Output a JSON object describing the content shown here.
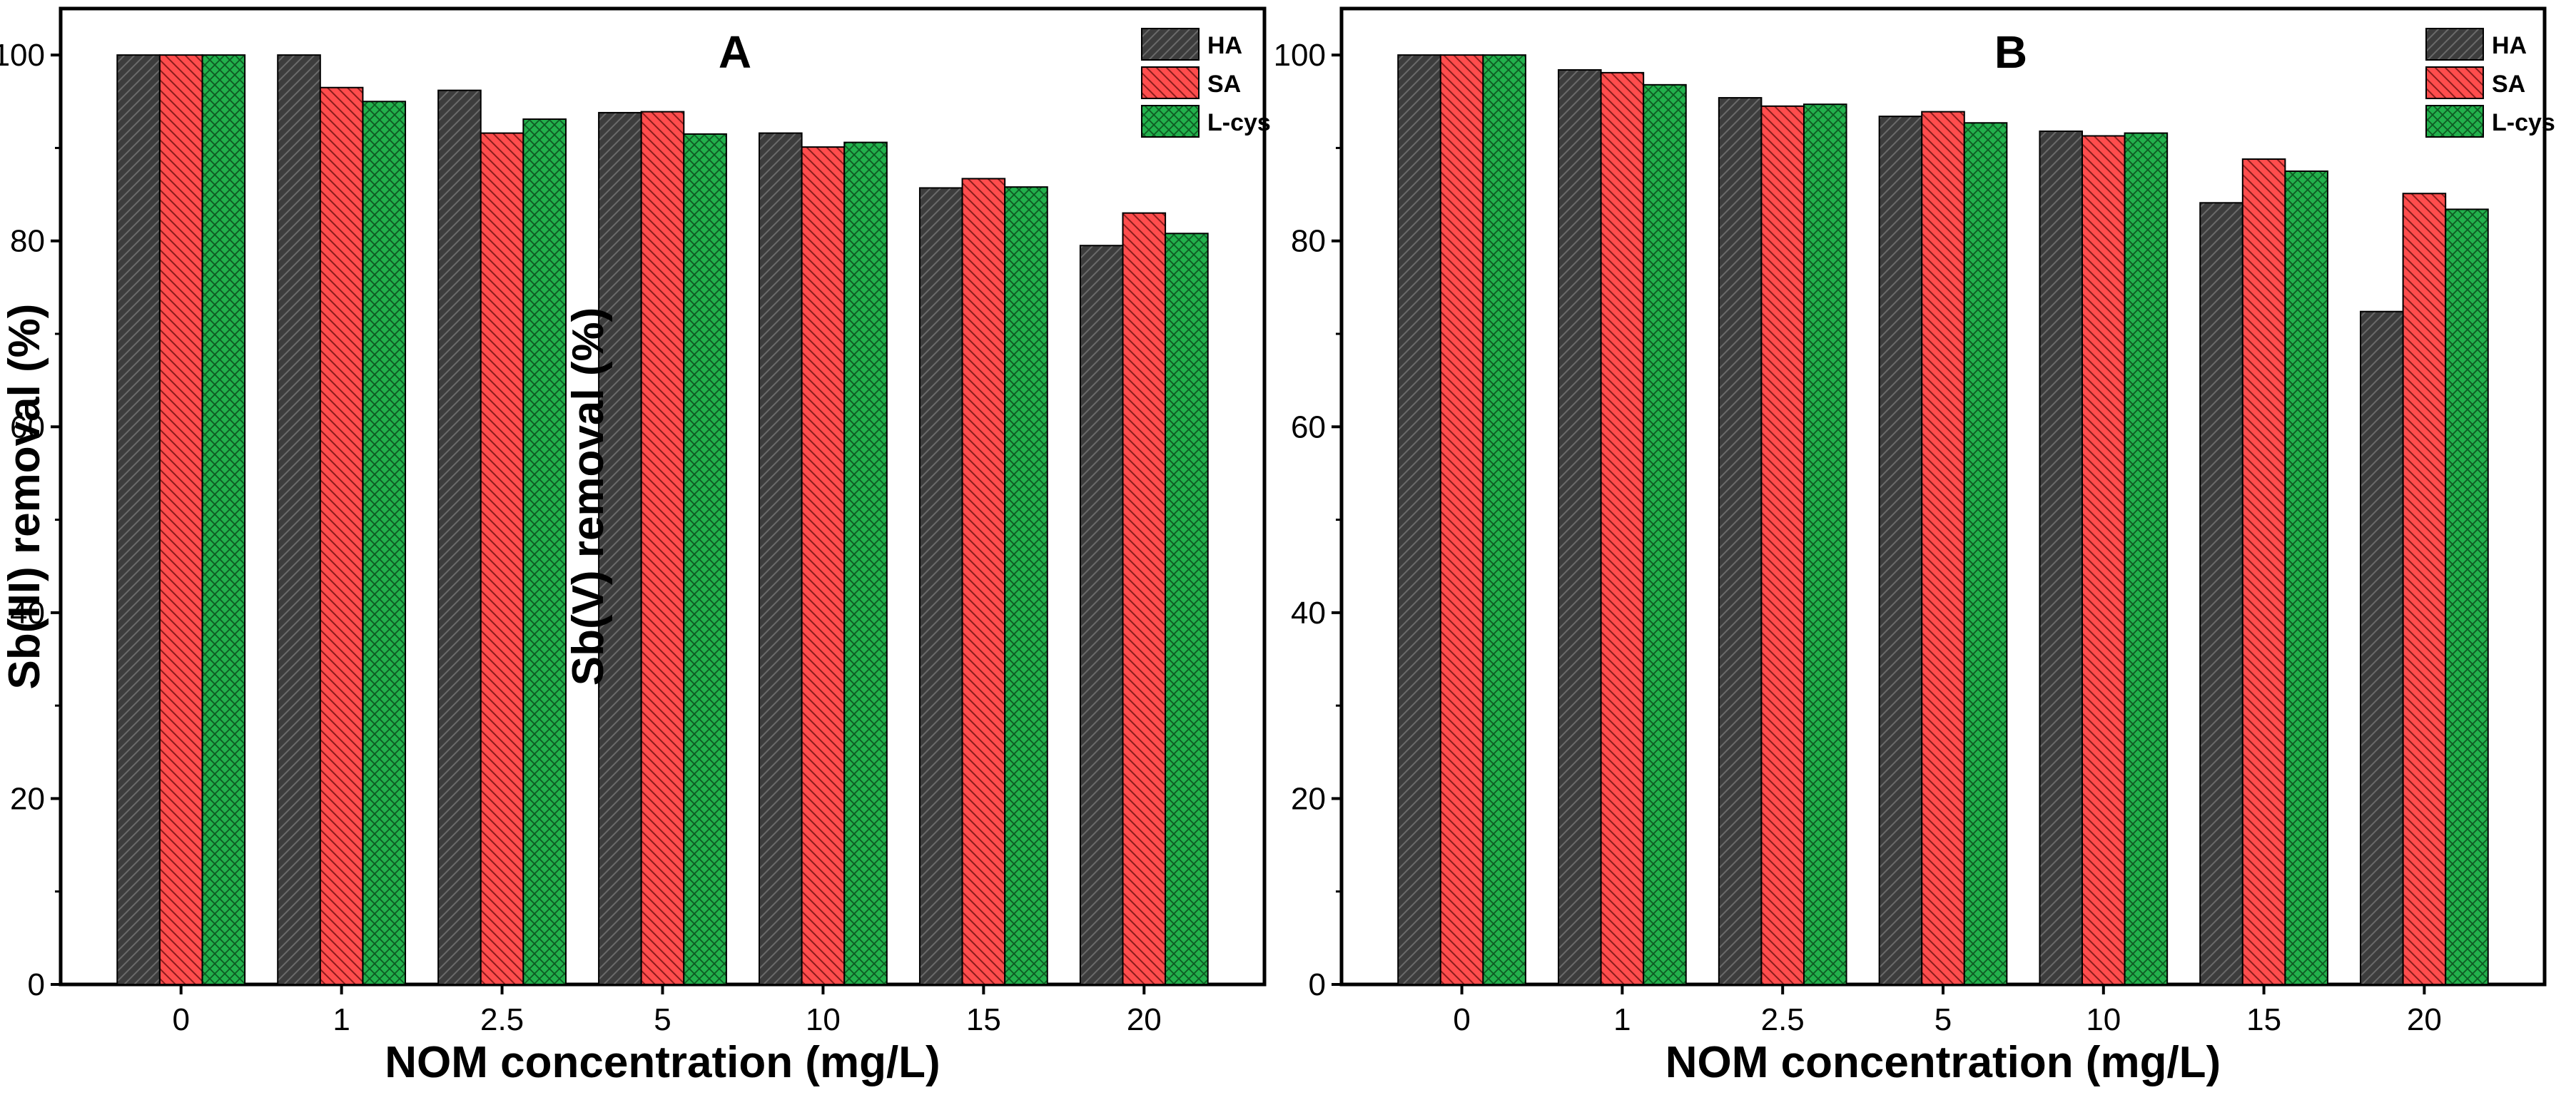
{
  "chart_data": [
    {
      "type": "bar",
      "title": "A",
      "xlabel": "NOM concentration (mg/L)",
      "ylabel": "Sb(III) removal (%)",
      "ylim": [
        0,
        105
      ],
      "yticks": [
        "0",
        "20",
        "40",
        "60",
        "80",
        "100"
      ],
      "categories": [
        "0",
        "1",
        "2.5",
        "5",
        "10",
        "15",
        "20"
      ],
      "legend_position": "top-right",
      "series": [
        {
          "name": "HA",
          "color": "#3d3d3d",
          "values": [
            100,
            100,
            96.2,
            93.8,
            91.6,
            85.7,
            79.5
          ]
        },
        {
          "name": "SA",
          "color": "#ff4d4d",
          "values": [
            100,
            96.5,
            91.6,
            93.9,
            90.1,
            86.7,
            83.0
          ]
        },
        {
          "name": "L-cys",
          "color": "#22b14c",
          "values": [
            100,
            95.0,
            93.1,
            91.5,
            90.6,
            85.8,
            80.8
          ]
        }
      ]
    },
    {
      "type": "bar",
      "title": "B",
      "xlabel": "NOM concentration (mg/L)",
      "ylabel": "Sb(V) removal (%)",
      "ylim": [
        0,
        105
      ],
      "yticks": [
        "0",
        "20",
        "40",
        "60",
        "80",
        "100"
      ],
      "categories": [
        "0",
        "1",
        "2.5",
        "5",
        "10",
        "15",
        "20"
      ],
      "legend_position": "top-right",
      "series": [
        {
          "name": "HA",
          "color": "#3d3d3d",
          "values": [
            100,
            98.4,
            95.4,
            93.4,
            91.8,
            84.1,
            72.4
          ]
        },
        {
          "name": "SA",
          "color": "#ff4d4d",
          "values": [
            100,
            98.1,
            94.5,
            93.9,
            91.3,
            88.8,
            85.1
          ]
        },
        {
          "name": "L-cys",
          "color": "#22b14c",
          "values": [
            100,
            96.8,
            94.7,
            92.7,
            91.6,
            87.5,
            83.4
          ]
        }
      ]
    }
  ]
}
